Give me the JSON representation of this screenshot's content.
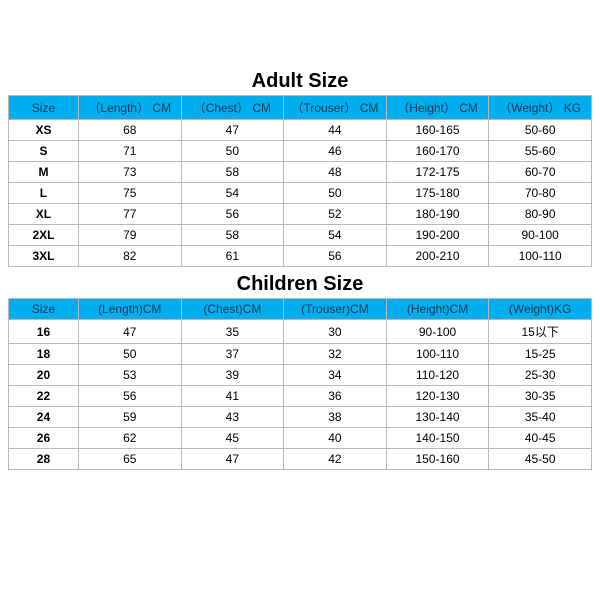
{
  "colors": {
    "header_bg": "#00aef0",
    "header_fg": "#003a55",
    "cell_bg": "#ffffff",
    "cell_fg": "#000000",
    "border": "#b8b8b8",
    "title_fg": "#000000"
  },
  "typography": {
    "title_fontsize_pt": 15,
    "header_fontsize_pt": 9,
    "cell_fontsize_pt": 9,
    "size_col_bold": true
  },
  "adult": {
    "title": "Adult Size",
    "columns": [
      "Size",
      "（Length） CM",
      "（Chest） CM",
      "（Trouser） CM",
      "（Height） CM",
      "（Weight） KG"
    ],
    "rows": [
      [
        "XS",
        "68",
        "47",
        "44",
        "160-165",
        "50-60"
      ],
      [
        "S",
        "71",
        "50",
        "46",
        "160-170",
        "55-60"
      ],
      [
        "M",
        "73",
        "58",
        "48",
        "172-175",
        "60-70"
      ],
      [
        "L",
        "75",
        "54",
        "50",
        "175-180",
        "70-80"
      ],
      [
        "XL",
        "77",
        "56",
        "52",
        "180-190",
        "80-90"
      ],
      [
        "2XL",
        "79",
        "58",
        "54",
        "190-200",
        "90-100"
      ],
      [
        "3XL",
        "82",
        "61",
        "56",
        "200-210",
        "100-110"
      ]
    ]
  },
  "children": {
    "title": "Children Size",
    "columns": [
      "Size",
      "(Length)CM",
      "(Chest)CM",
      "(Trouser)CM",
      "(Height)CM",
      "(Weight)KG"
    ],
    "rows": [
      [
        "16",
        "47",
        "35",
        "30",
        "90-100",
        "15以下"
      ],
      [
        "18",
        "50",
        "37",
        "32",
        "100-110",
        "15-25"
      ],
      [
        "20",
        "53",
        "39",
        "34",
        "110-120",
        "25-30"
      ],
      [
        "22",
        "56",
        "41",
        "36",
        "120-130",
        "30-35"
      ],
      [
        "24",
        "59",
        "43",
        "38",
        "130-140",
        "35-40"
      ],
      [
        "26",
        "62",
        "45",
        "40",
        "140-150",
        "40-45"
      ],
      [
        "28",
        "65",
        "47",
        "42",
        "150-160",
        "45-50"
      ]
    ]
  }
}
